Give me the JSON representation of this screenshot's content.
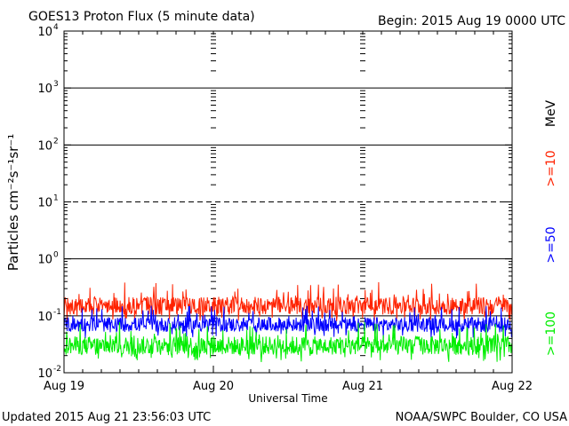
{
  "header": {
    "title": "GOES13 Proton Flux (5 minute data)",
    "begin": "Begin: 2015 Aug 19 0000 UTC"
  },
  "footer": {
    "updated": "Updated 2015 Aug 21 23:56:03 UTC",
    "credit": "NOAA/SWPC Boulder, CO USA"
  },
  "colors": {
    "ge10": "#ff2200",
    "ge50": "#0000ff",
    "ge100": "#00ee00",
    "axis": "#000000"
  },
  "chart_data": {
    "type": "line",
    "title": "GOES13 Proton Flux (5 minute data)",
    "xlabel": "Universal Time",
    "ylabel": "Particles cm⁻²s⁻¹sr⁻¹",
    "xlim": [
      "2015-08-19 00:00",
      "2015-08-22 00:00"
    ],
    "x_ticks": [
      "Aug 19",
      "Aug 20",
      "Aug 21",
      "Aug 22"
    ],
    "yscale": "log",
    "ylim": [
      0.01,
      10000
    ],
    "y_ticks": [
      {
        "base": "10",
        "exp": "4"
      },
      {
        "base": "10",
        "exp": "3"
      },
      {
        "base": "10",
        "exp": "2"
      },
      {
        "base": "10",
        "exp": "1"
      },
      {
        "base": "10",
        "exp": "0"
      },
      {
        "base": "10",
        "exp": "-1"
      },
      {
        "base": "10",
        "exp": "-2"
      }
    ],
    "reference_lines": [
      {
        "value": 10,
        "style": "dashed"
      },
      {
        "value": 1000,
        "style": "solid"
      },
      {
        "value": 100,
        "style": "solid"
      },
      {
        "value": 1,
        "style": "solid"
      },
      {
        "value": 0.1,
        "style": "solid"
      }
    ],
    "legend_position": "right",
    "legend_unit": "MeV",
    "series": [
      {
        "name": ">=10",
        "color": "#ff2200",
        "typical": 0.15,
        "range": [
          0.08,
          0.4
        ]
      },
      {
        "name": ">=50",
        "color": "#0000ff",
        "typical": 0.07,
        "range": [
          0.04,
          0.15
        ]
      },
      {
        "name": ">=100",
        "color": "#00ee00",
        "typical": 0.03,
        "range": [
          0.015,
          0.08
        ]
      }
    ]
  }
}
